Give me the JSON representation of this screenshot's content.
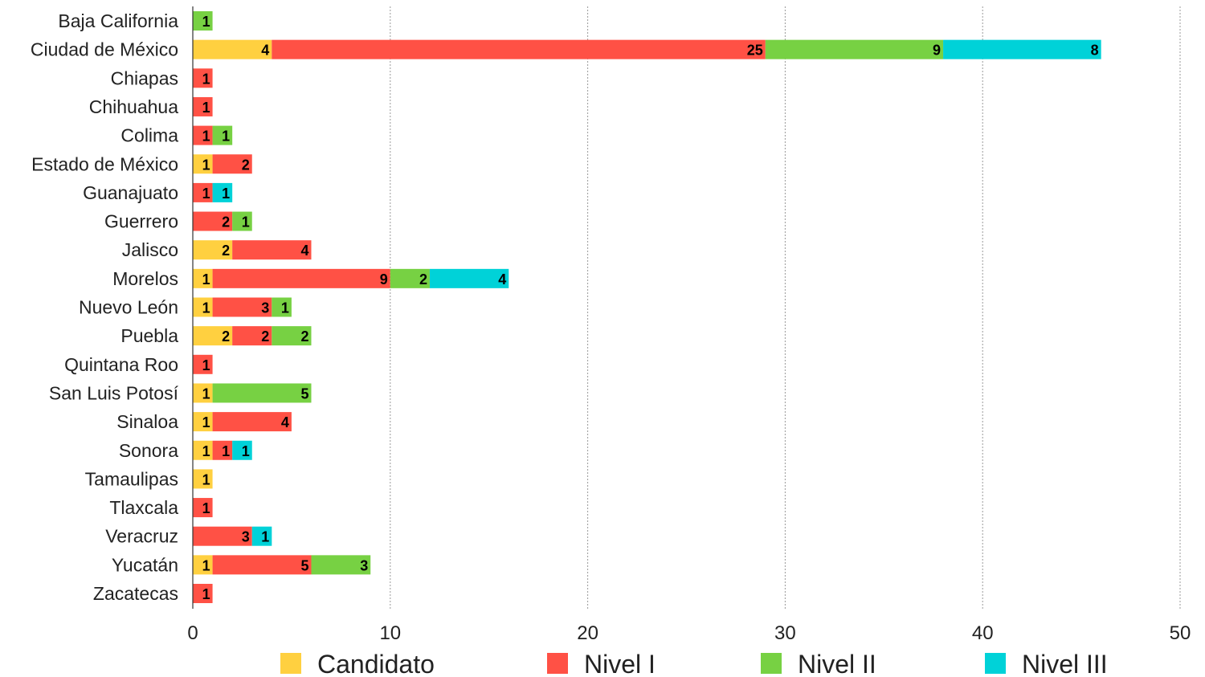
{
  "chart_data": {
    "type": "bar",
    "orientation": "horizontal",
    "stacked": true,
    "categories": [
      "Baja California",
      "Ciudad de México",
      "Chiapas",
      "Chihuahua",
      "Colima",
      "Estado de México",
      "Guanajuato",
      "Guerrero",
      "Jalisco",
      "Morelos",
      "Nuevo León",
      "Puebla",
      "Quintana Roo",
      "San Luis Potosí",
      "Sinaloa",
      "Sonora",
      "Tamaulipas",
      "Tlaxcala",
      "Veracruz",
      "Yucatán",
      "Zacatecas"
    ],
    "series": [
      {
        "name": "Candidato",
        "color": "#FFD040",
        "values": [
          0,
          4,
          0,
          0,
          0,
          1,
          0,
          0,
          2,
          1,
          1,
          2,
          0,
          1,
          1,
          1,
          1,
          0,
          0,
          1,
          0
        ]
      },
      {
        "name": "Nivel I",
        "color": "#FF5145",
        "values": [
          0,
          25,
          1,
          1,
          1,
          2,
          1,
          2,
          4,
          9,
          3,
          2,
          1,
          0,
          4,
          1,
          0,
          1,
          3,
          5,
          1
        ]
      },
      {
        "name": "Nivel II",
        "color": "#77D143",
        "values": [
          1,
          9,
          0,
          0,
          1,
          0,
          0,
          1,
          0,
          2,
          1,
          2,
          0,
          5,
          0,
          0,
          0,
          0,
          0,
          3,
          0
        ]
      },
      {
        "name": "Nivel III",
        "color": "#00D2D8",
        "values": [
          0,
          8,
          0,
          0,
          0,
          0,
          1,
          0,
          0,
          4,
          0,
          0,
          0,
          0,
          0,
          1,
          0,
          0,
          1,
          0,
          0
        ]
      }
    ],
    "xlim": [
      0,
      50
    ],
    "xticks": [
      0,
      10,
      20,
      30,
      40,
      50
    ],
    "grid": "vertical dotted",
    "legend_position": "bottom"
  }
}
